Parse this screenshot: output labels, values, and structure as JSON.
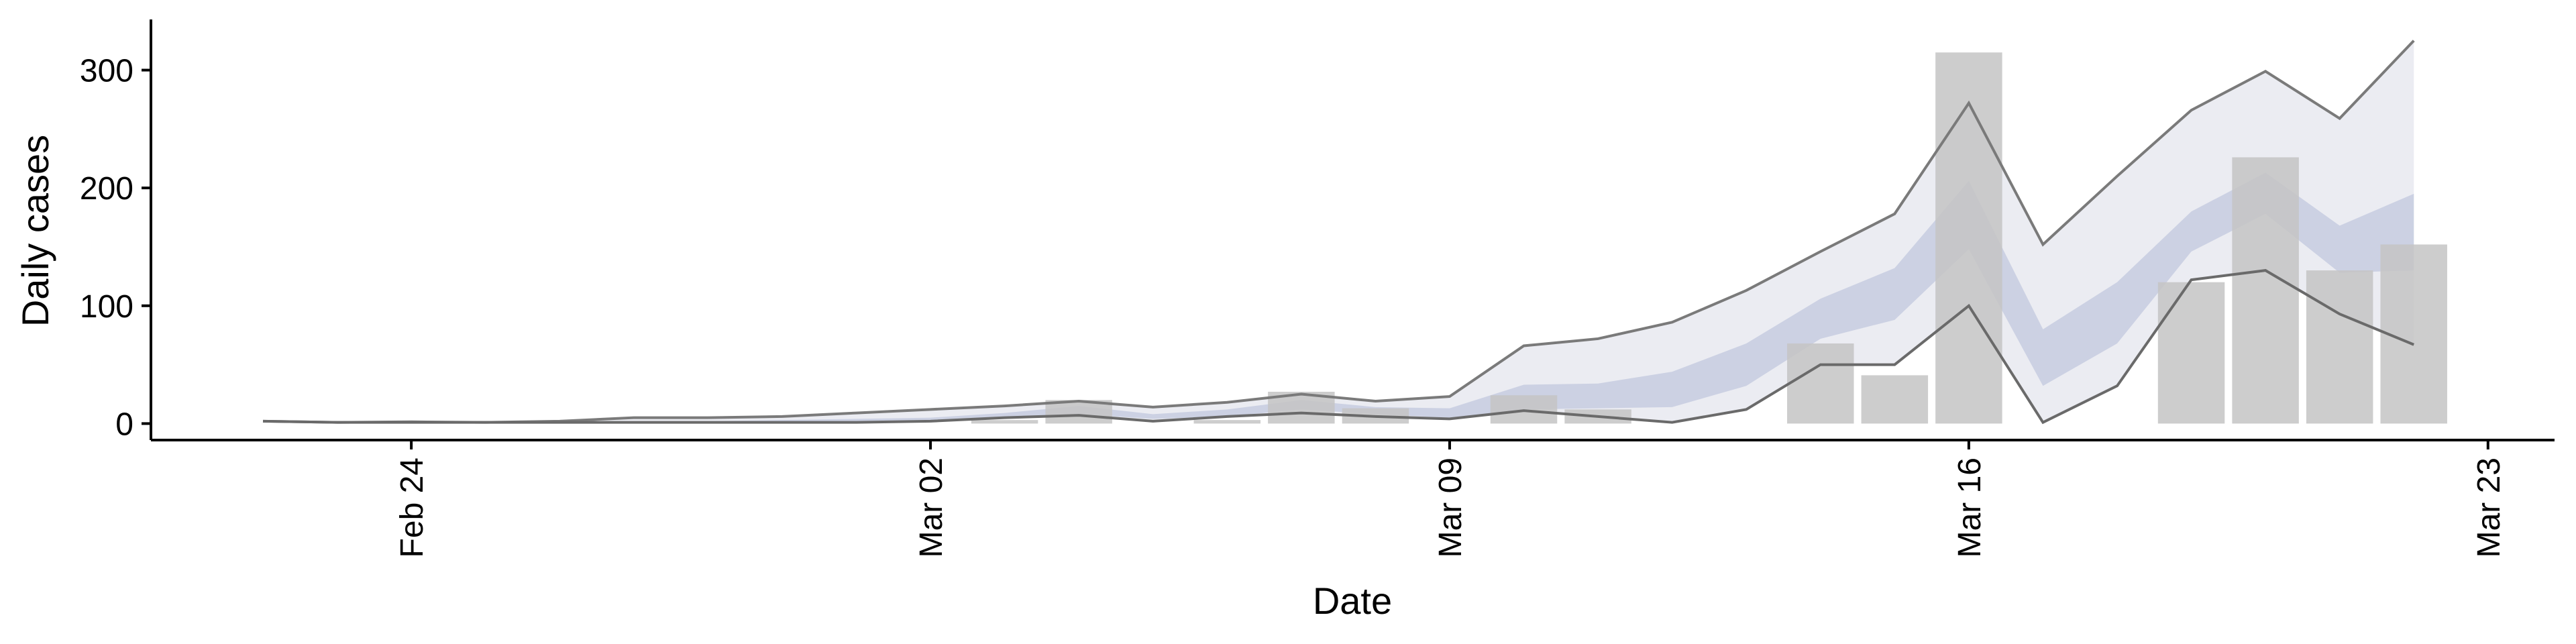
{
  "chart_data": {
    "type": "bar",
    "x_label": "Date",
    "y_label": "Daily cases",
    "x": [
      "Feb 22",
      "Feb 23",
      "Feb 24",
      "Feb 25",
      "Feb 26",
      "Feb 27",
      "Feb 28",
      "Feb 29",
      "Mar 01",
      "Mar 02",
      "Mar 03",
      "Mar 04",
      "Mar 05",
      "Mar 06",
      "Mar 07",
      "Mar 08",
      "Mar 09",
      "Mar 10",
      "Mar 11",
      "Mar 12",
      "Mar 13",
      "Mar 14",
      "Mar 15",
      "Mar 16",
      "Mar 17",
      "Mar 18",
      "Mar 19",
      "Mar 20",
      "Mar 21",
      "Mar 22"
    ],
    "values": [
      0,
      0,
      0,
      0,
      0,
      0,
      0,
      0,
      0,
      0,
      3,
      20,
      0,
      3,
      27,
      13,
      0,
      24,
      12,
      0,
      0,
      68,
      41,
      315,
      0,
      0,
      120,
      226,
      130,
      152
    ],
    "color": "#c4c4c4",
    "bands": [
      {
        "color": "#e7e9f0",
        "lower": [
          2,
          1,
          1,
          1,
          1,
          1,
          1,
          1,
          1,
          2,
          5,
          7,
          2,
          6,
          9,
          6,
          4,
          11,
          6,
          1,
          12,
          50,
          50,
          100,
          1,
          32,
          122,
          130,
          93,
          67
        ],
        "upper": [
          2,
          1,
          1.5,
          1,
          2,
          5,
          5,
          6,
          9,
          12,
          15,
          19,
          14,
          18,
          25,
          19,
          23,
          66,
          72,
          86,
          113,
          146,
          178,
          272,
          152,
          210,
          266,
          299,
          259,
          325
        ]
      },
      {
        "color": "#c7cde0",
        "lower": [
          1,
          1,
          1,
          1,
          1,
          1,
          1,
          1,
          1,
          2,
          4,
          8,
          4,
          6,
          12,
          8,
          5,
          12,
          13,
          14,
          32,
          72,
          88,
          148,
          32,
          68,
          146,
          178,
          128,
          130
        ],
        "upper": [
          2,
          1,
          1,
          1,
          1,
          2,
          2,
          3,
          4,
          5,
          9,
          15,
          8,
          12,
          20,
          14,
          13,
          33,
          34,
          44,
          68,
          106,
          132,
          206,
          80,
          120,
          180,
          213,
          168,
          195
        ]
      }
    ],
    "lines": [
      {
        "color": "#7a7a7a",
        "values": [
          2,
          1,
          1.5,
          1,
          2,
          5,
          5,
          6,
          9,
          12,
          15,
          19,
          14,
          18,
          25,
          19,
          23,
          66,
          72,
          86,
          113,
          146,
          178,
          272,
          152,
          210,
          266,
          299,
          259,
          325
        ]
      },
      {
        "color": "#6a6a6a",
        "values": [
          2,
          1,
          1,
          1,
          1,
          1,
          1,
          1,
          1,
          2,
          5,
          7,
          2,
          6,
          9,
          6,
          4,
          11,
          6,
          1,
          12,
          50,
          50,
          100,
          1,
          32,
          122,
          130,
          93,
          67
        ]
      }
    ],
    "xticks": [
      "Feb 24",
      "Mar 02",
      "Mar 09",
      "Mar 16",
      "Mar 23"
    ],
    "ylim": [
      -14,
      343
    ],
    "yticks": [
      0,
      100,
      200,
      300
    ]
  }
}
